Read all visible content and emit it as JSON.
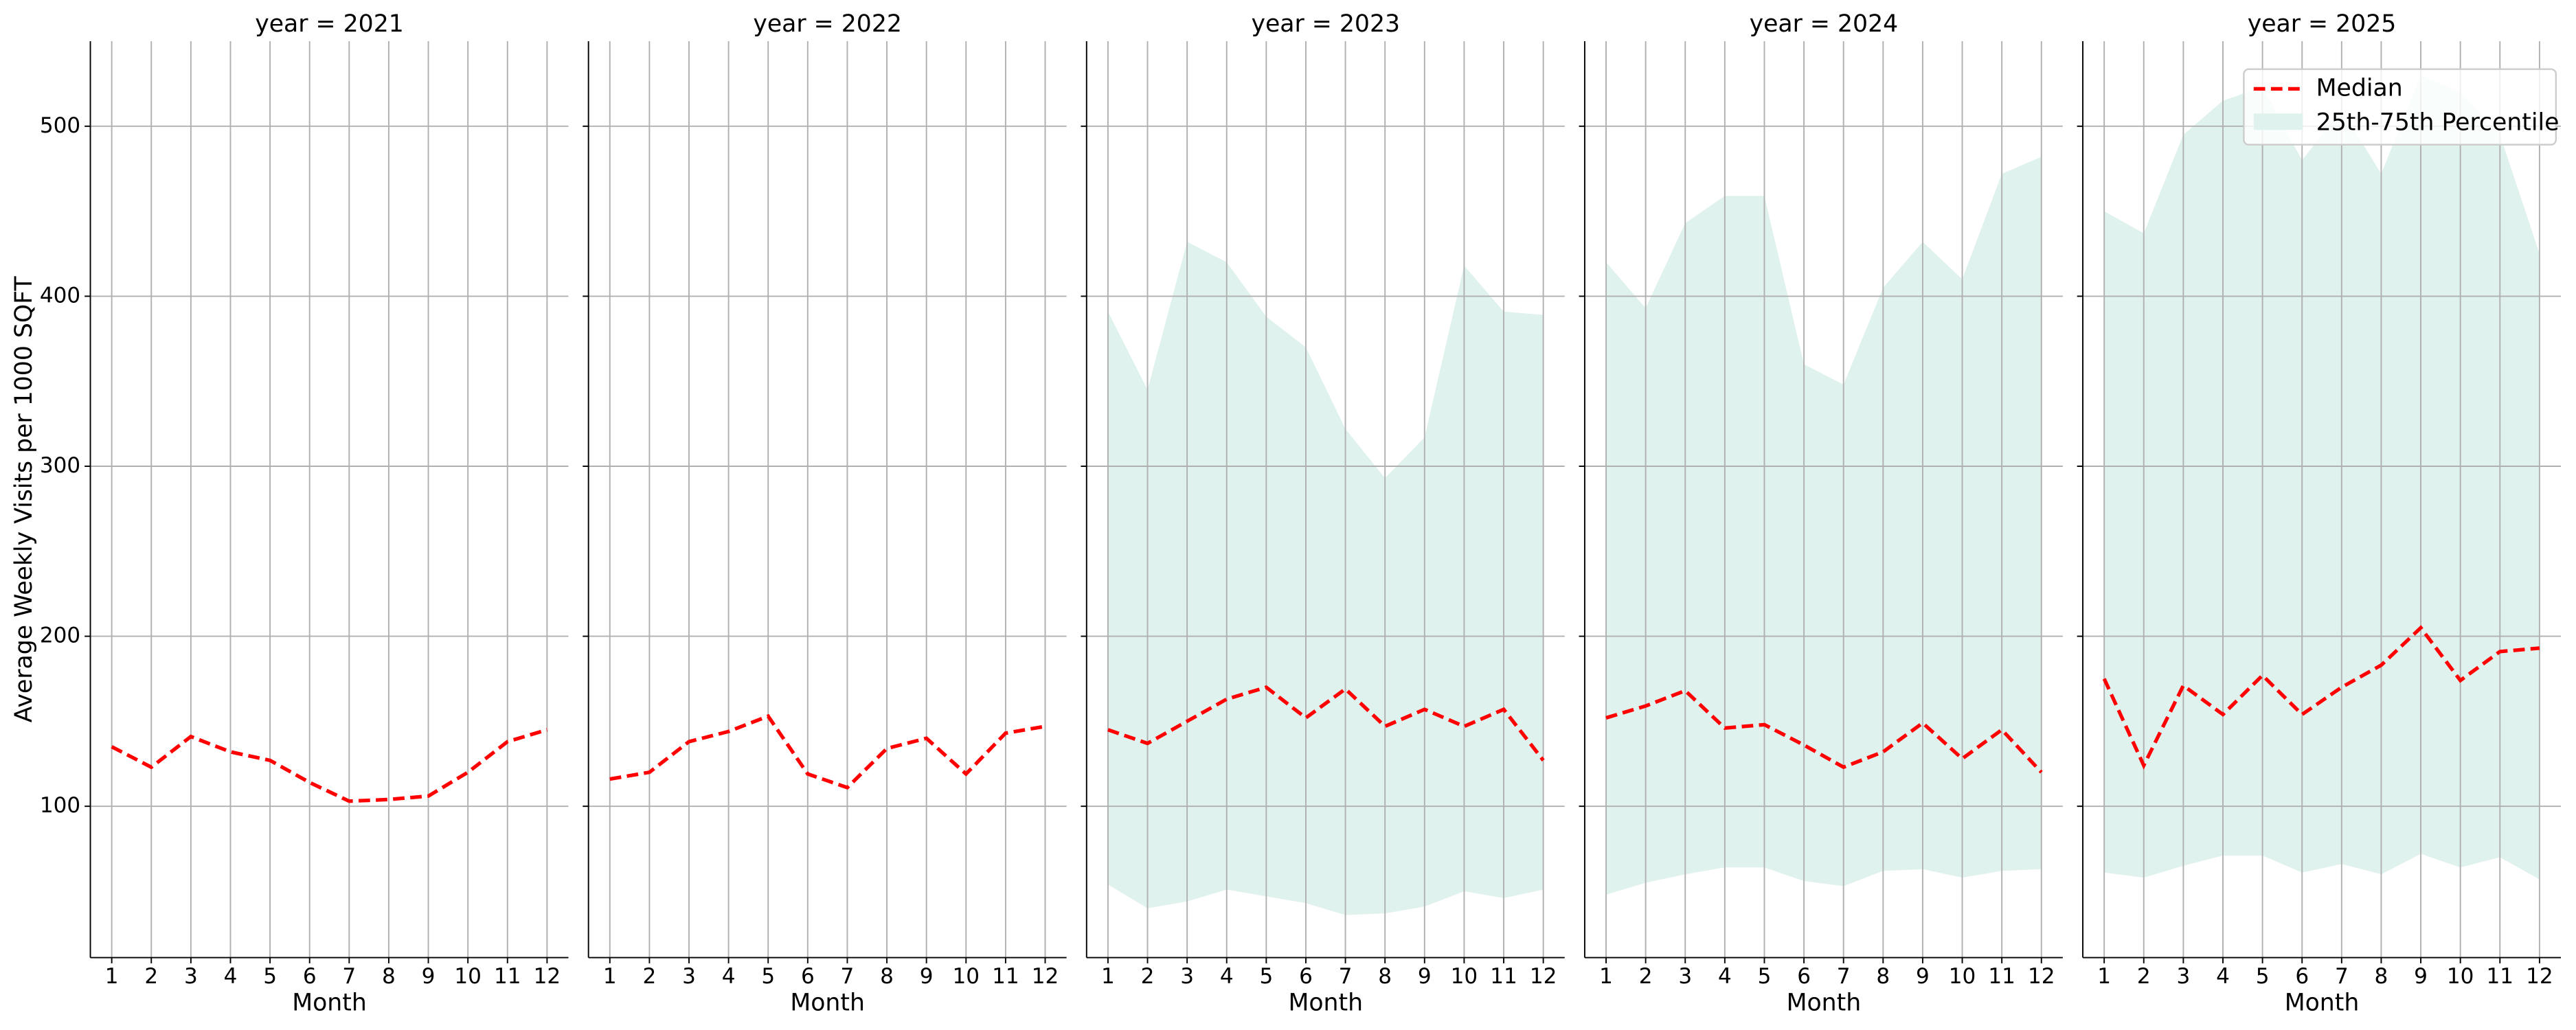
{
  "chart_data": [
    {
      "type": "line",
      "title": "year = 2021",
      "xlabel": "Month",
      "ylabel": "Average Weekly Visits per 1000 SQFT",
      "x": [
        1,
        2,
        3,
        4,
        5,
        6,
        7,
        8,
        9,
        10,
        11,
        12
      ],
      "series": [
        {
          "color": "#ff0000",
          "values": [
            135,
            123,
            141,
            132,
            127,
            114,
            103,
            104,
            106,
            120,
            138,
            145
          ]
        }
      ],
      "xlim": [
        0.46,
        12.54
      ],
      "ylim": [
        11,
        550
      ],
      "yticks": [
        100,
        200,
        300,
        400,
        500
      ],
      "grid": true
    },
    {
      "type": "line",
      "title": "year = 2022",
      "xlabel": "Month",
      "x": [
        1,
        2,
        3,
        4,
        5,
        6,
        7,
        8,
        9,
        10,
        11,
        12
      ],
      "series": [
        {
          "color": "#ff0000",
          "values": [
            116,
            120,
            138,
            144,
            153,
            119,
            111,
            134,
            140,
            119,
            143,
            147
          ]
        }
      ],
      "xlim": [
        0.46,
        12.54
      ],
      "ylim": [
        11,
        550
      ],
      "yticks": [
        100,
        200,
        300,
        400,
        500
      ],
      "grid": true
    },
    {
      "type": "line",
      "title": "year = 2023",
      "xlabel": "Month",
      "x": [
        1,
        2,
        3,
        4,
        5,
        6,
        7,
        8,
        9,
        10,
        11,
        12
      ],
      "series": [
        {
          "color": "#ff0000",
          "values": [
            145,
            137,
            150,
            163,
            170,
            152,
            169,
            147,
            157,
            147,
            157,
            127
          ]
        }
      ],
      "band": {
        "color": "#e0f2ee",
        "lower": [
          54,
          40,
          44,
          51,
          47,
          43,
          36,
          37,
          41,
          50,
          46,
          51
        ],
        "upper": [
          391,
          345,
          432,
          420,
          388,
          370,
          322,
          293,
          317,
          418,
          391,
          389
        ]
      },
      "xlim": [
        0.46,
        12.54
      ],
      "ylim": [
        11,
        550
      ],
      "yticks": [
        100,
        200,
        300,
        400,
        500
      ],
      "grid": true
    },
    {
      "type": "line",
      "title": "year = 2024",
      "xlabel": "Month",
      "x": [
        1,
        2,
        3,
        4,
        5,
        6,
        7,
        8,
        9,
        10,
        11,
        12
      ],
      "series": [
        {
          "color": "#ff0000",
          "values": [
            152,
            159,
            168,
            146,
            148,
            136,
            123,
            132,
            149,
            128,
            145,
            120
          ]
        }
      ],
      "band": {
        "color": "#e0f2ee",
        "lower": [
          48,
          55,
          60,
          64,
          64,
          56,
          53,
          62,
          63,
          58,
          62,
          63
        ],
        "upper": [
          420,
          393,
          443,
          459,
          459,
          360,
          348,
          405,
          432,
          410,
          472,
          482
        ]
      },
      "xlim": [
        0.46,
        12.54
      ],
      "ylim": [
        11,
        550
      ],
      "yticks": [
        100,
        200,
        300,
        400,
        500
      ],
      "grid": true
    },
    {
      "type": "line",
      "title": "year = 2025",
      "xlabel": "Month",
      "x": [
        1,
        2,
        3,
        4,
        5,
        6,
        7,
        8,
        9,
        10,
        11,
        12
      ],
      "series": [
        {
          "name": "Median",
          "color": "#ff0000",
          "values": [
            175,
            124,
            171,
            154,
            177,
            154,
            170,
            183,
            205,
            174,
            191,
            193
          ]
        }
      ],
      "band": {
        "name": "25th-75th Percentile",
        "color": "#e0f2ee",
        "lower": [
          61,
          58,
          65,
          71,
          71,
          61,
          66,
          60,
          72,
          64,
          70,
          57
        ],
        "upper": [
          450,
          437,
          495,
          515,
          523,
          480,
          510,
          472,
          530,
          520,
          495,
          425
        ]
      },
      "xlim": [
        0.46,
        12.54
      ],
      "ylim": [
        11,
        550
      ],
      "yticks": [
        100,
        200,
        300,
        400,
        500
      ],
      "grid": true,
      "legend": "upper right"
    }
  ]
}
